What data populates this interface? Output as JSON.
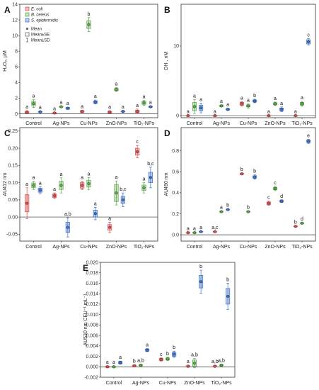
{
  "colors": {
    "ecoli": "#d94a4a",
    "bcereus": "#5aa84a",
    "sepidermidis": "#3b6fc9"
  },
  "legend": {
    "series": [
      "E. coli",
      "B. cereus",
      "S. epidermidis"
    ],
    "stats": [
      "Mean",
      "Mean±SE",
      "Mean±SD"
    ]
  },
  "chart_data": [
    {
      "type": "box",
      "panel": "A",
      "ylabel": "H₂O₂, µM",
      "ylim": [
        -0.5,
        14
      ],
      "yticks": [
        0,
        2,
        4,
        6,
        8,
        10,
        12,
        14
      ],
      "categories": [
        "Control",
        "Ag-NPs",
        "Cu-NPs",
        "ZnO-NPs",
        "TiO₂-NPs"
      ],
      "series": [
        {
          "name": "E. coli",
          "color_key": "ecoli",
          "values": [
            0.2,
            0.1,
            0.3,
            0.2,
            0.3
          ],
          "se": [
            0.1,
            0.05,
            0.1,
            0.1,
            0.15
          ],
          "sd": [
            0.2,
            0.1,
            0.15,
            0.2,
            0.3
          ],
          "sig": [
            "a",
            "a",
            "a",
            "a",
            "a"
          ]
        },
        {
          "name": "B. cereus",
          "color_key": "bcereus",
          "values": [
            1.3,
            0.9,
            11.4,
            3.1,
            1.4
          ],
          "se": [
            0.3,
            0.05,
            0.5,
            0.15,
            0.2
          ],
          "sd": [
            0.5,
            0.1,
            0.9,
            0.25,
            0.3
          ],
          "sig": [
            "a",
            "a",
            "b",
            "a",
            "a"
          ]
        },
        {
          "name": "S. epidermidis",
          "color_key": "sepidermidis",
          "values": [
            0.25,
            0.7,
            1.5,
            0.3,
            0.9
          ],
          "se": [
            0.05,
            0.1,
            0.15,
            0.05,
            0.05
          ],
          "sd": [
            0.1,
            0.15,
            0.25,
            0.1,
            0.1
          ],
          "sig": [
            "a",
            "a",
            "a",
            "a",
            "a"
          ]
        }
      ]
    },
    {
      "type": "box",
      "panel": "B",
      "ylabel": "OH·, nM",
      "ylim": [
        -0.3,
        16
      ],
      "yticks": [
        0,
        10
      ],
      "categories": [
        "Control",
        "Ag-NPs",
        "Cu-NPs",
        "ZnO-NPs",
        "TiO₂-NPs"
      ],
      "series": [
        {
          "name": "E. coli",
          "color_key": "ecoli",
          "values": [
            0.0,
            0.0,
            1.7,
            0.0,
            0.0
          ],
          "se": [
            0.02,
            0.02,
            0.2,
            0.02,
            0.02
          ],
          "sd": [
            0.04,
            0.04,
            0.3,
            0.04,
            0.04
          ],
          "sig": [
            "a",
            "a",
            "a",
            "a",
            "a"
          ]
        },
        {
          "name": "B. cereus",
          "color_key": "bcereus",
          "values": [
            1.3,
            1.4,
            1.4,
            1.7,
            1.7
          ],
          "se": [
            0.6,
            0.1,
            0.15,
            0.15,
            0.2
          ],
          "sd": [
            1.0,
            0.15,
            0.3,
            0.25,
            0.35
          ],
          "sig": [
            "a",
            "a",
            "a",
            "a",
            "a"
          ]
        },
        {
          "name": "S. epidermidis",
          "color_key": "sepidermidis",
          "values": [
            1.1,
            0.9,
            2.1,
            0.9,
            10.6
          ],
          "se": [
            0.4,
            0.1,
            0.15,
            0.2,
            0.3
          ],
          "sd": [
            0.7,
            0.15,
            0.25,
            0.35,
            0.45
          ],
          "sig": [
            "a",
            "a",
            "b",
            "a",
            "c"
          ]
        }
      ]
    },
    {
      "type": "box",
      "panel": "C",
      "ylabel": "AU412 nm",
      "ylim": [
        -0.07,
        0.26
      ],
      "yticks": [
        -0.05,
        0,
        0.05,
        0.1,
        0.15,
        0.2,
        0.25
      ],
      "categories": [
        "Control",
        "Ag-NPs",
        "Cu-NPs",
        "ZnO-NPs",
        "TiO₂-NPs"
      ],
      "series": [
        {
          "name": "E. coli",
          "color_key": "ecoli",
          "values": [
            0.04,
            0.062,
            0.092,
            -0.03,
            0.19
          ],
          "se": [
            0.025,
            0.005,
            0.008,
            0.008,
            0.01
          ],
          "sd": [
            0.045,
            0.008,
            0.012,
            0.015,
            0.018
          ],
          "sig": [
            "a",
            "a",
            "a",
            "a",
            "c"
          ]
        },
        {
          "name": "B. cereus",
          "color_key": "bcereus",
          "values": [
            0.092,
            0.092,
            0.097,
            0.07,
            0.085
          ],
          "se": [
            0.007,
            0.012,
            0.01,
            0.025,
            0.008
          ],
          "sd": [
            0.012,
            0.022,
            0.018,
            0.035,
            0.015
          ],
          "sig": [
            "a",
            "a",
            "a",
            "a",
            "a"
          ]
        },
        {
          "name": "S. epidermidis",
          "color_key": "sepidermidis",
          "values": [
            0.078,
            -0.03,
            0.01,
            0.05,
            0.115
          ],
          "se": [
            0.006,
            0.015,
            0.01,
            0.01,
            0.015
          ],
          "sd": [
            0.01,
            0.028,
            0.018,
            0.02,
            0.03
          ],
          "sig": [
            "a",
            "a,b",
            "a",
            "b,c",
            "b,c"
          ]
        }
      ]
    },
    {
      "type": "box",
      "panel": "D",
      "ylabel": "AU490 nm",
      "ylim": [
        -0.06,
        1.02
      ],
      "yticks": [
        0.0,
        0.2,
        0.4,
        0.6,
        0.8
      ],
      "categories": [
        "Control",
        "Ag-NPs",
        "Cu-NPs",
        "ZnO-NPs",
        "TiO₂-NPs"
      ],
      "series": [
        {
          "name": "E. coli",
          "color_key": "ecoli",
          "values": [
            0.02,
            0.03,
            0.58,
            0.3,
            0.08
          ],
          "se": [
            0.003,
            0.003,
            0.005,
            0.012,
            0.004
          ],
          "sd": [
            0.005,
            0.005,
            0.008,
            0.02,
            0.006
          ],
          "sig": [
            "a",
            "a,c",
            "b",
            "c",
            "b"
          ]
        },
        {
          "name": "B. cereus",
          "color_key": "bcereus",
          "values": [
            0.02,
            0.22,
            0.22,
            0.44,
            0.11
          ],
          "se": [
            0.003,
            0.004,
            0.004,
            0.012,
            0.004
          ],
          "sd": [
            0.005,
            0.006,
            0.006,
            0.02,
            0.006
          ],
          "sig": [
            "a",
            "a",
            "b",
            "c",
            "d"
          ]
        },
        {
          "name": "S. epidermidis",
          "color_key": "sepidermidis",
          "values": [
            0.03,
            0.24,
            0.55,
            0.32,
            0.89
          ],
          "se": [
            0.003,
            0.004,
            0.012,
            0.008,
            0.012
          ],
          "sd": [
            0.005,
            0.006,
            0.02,
            0.013,
            0.02
          ],
          "sig": [
            "a",
            "b",
            "b",
            "d",
            "e"
          ]
        }
      ]
    },
    {
      "type": "box",
      "panel": "E",
      "ylabel": "AU530 nm CFU⁻¹ mL⁻¹",
      "ylim": [
        -0.002,
        0.02
      ],
      "yticks": [
        -0.002,
        0.0,
        0.002,
        0.004,
        0.006,
        0.008,
        0.01,
        0.012,
        0.014,
        0.016,
        0.018,
        0.02
      ],
      "categories": [
        "Control",
        "Ag-NPs",
        "Cu-NPs",
        "ZnO-NPs",
        "TiO₂-NPs"
      ],
      "series": [
        {
          "name": "E. coli",
          "color_key": "ecoli",
          "values": [
            0.0,
            0.0002,
            0.0014,
            0.0001,
            0.0001
          ],
          "se": [
            0.0001,
            0.0001,
            0.0002,
            0.0001,
            0.0001
          ],
          "sd": [
            0.0002,
            0.0002,
            0.0003,
            0.0002,
            0.0002
          ],
          "sig": [
            "a",
            "b",
            "c",
            "a",
            "a,b"
          ]
        },
        {
          "name": "B. cereus",
          "color_key": "bcereus",
          "values": [
            0.0,
            0.0003,
            0.0015,
            0.0007,
            0.0003
          ],
          "se": [
            0.0001,
            0.0001,
            0.0002,
            0.0006,
            0.0001
          ],
          "sd": [
            0.0002,
            0.0002,
            0.0003,
            0.0009,
            0.0002
          ],
          "sig": [
            "a",
            "a,b",
            "b",
            "a,b",
            "a,b"
          ]
        },
        {
          "name": "S. epidermidis",
          "color_key": "sepidermidis",
          "values": [
            0.0008,
            0.0032,
            0.0024,
            0.0163,
            0.0135
          ],
          "se": [
            0.0002,
            0.0002,
            0.0004,
            0.0012,
            0.0015
          ],
          "sd": [
            0.0003,
            0.0003,
            0.0006,
            0.0022,
            0.0025
          ],
          "sig": [
            "a",
            "a",
            "b",
            "b",
            "b"
          ]
        }
      ]
    }
  ]
}
